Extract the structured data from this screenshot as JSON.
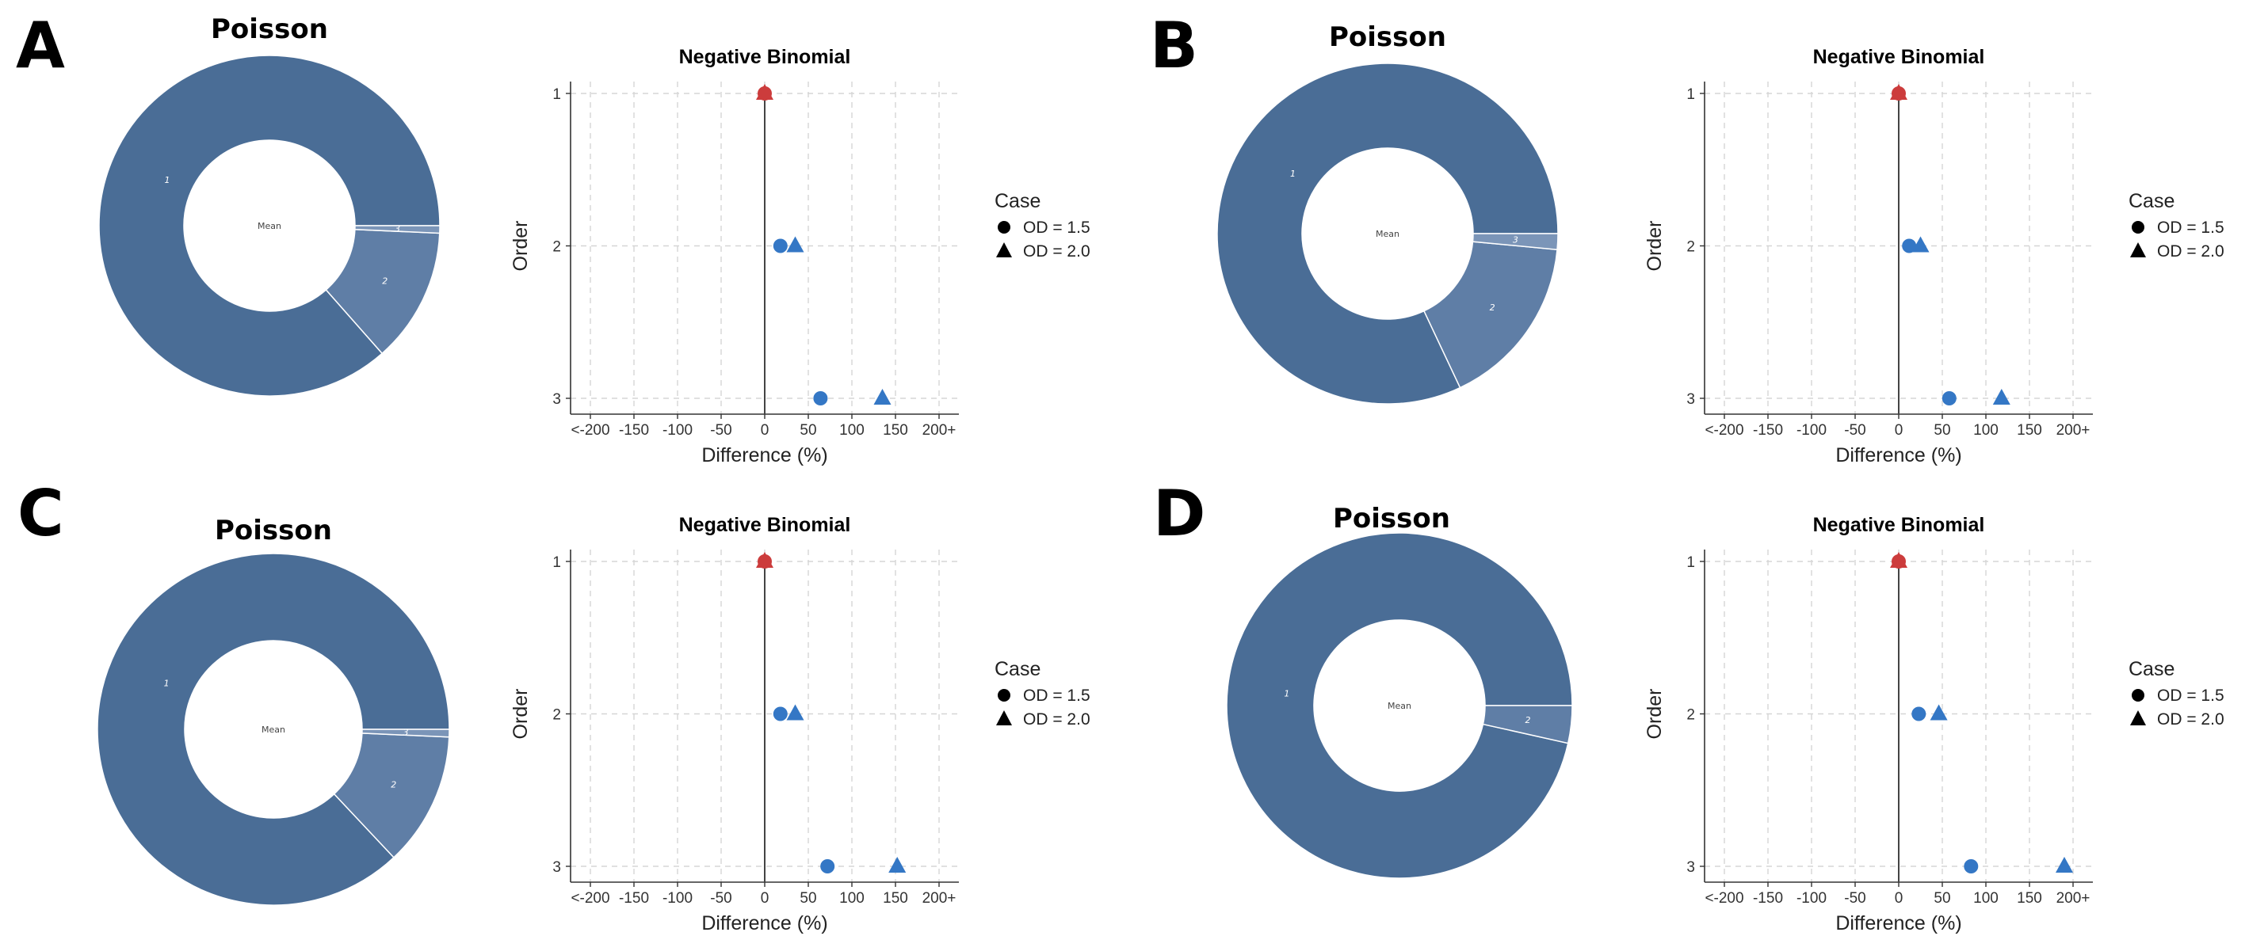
{
  "colors": {
    "donut_slice_1": "#4a6d96",
    "donut_slice_2": "#5f7ea6",
    "donut_slice_3": "#7b95b8",
    "nb_blue": "#3477c5",
    "nb_red": "#cc3c3c",
    "grid": "#d6d6d6",
    "axis": "#333333"
  },
  "legend": {
    "title": "Case",
    "items": [
      "OD = 1.5",
      "OD = 2.0"
    ]
  },
  "chart_data": [
    {
      "panel": "A",
      "poisson": {
        "type": "pie",
        "title": "Poisson",
        "center_label": "Mean",
        "slices": [
          {
            "label": "1",
            "value": 86.5
          },
          {
            "label": "2",
            "value": 12.8
          },
          {
            "label": "3",
            "value": 0.7
          }
        ]
      },
      "negbin": {
        "type": "scatter",
        "title": "Negative Binomial",
        "xlabel": "Difference (%)",
        "ylabel": "Order",
        "x_ticks": [
          "<-200",
          "-150",
          "-100",
          "-50",
          "0",
          "50",
          "100",
          "150",
          "200+"
        ],
        "y_ticks": [
          "1",
          "2",
          "3"
        ],
        "xlim": [
          -200,
          200
        ],
        "series": [
          {
            "name": "OD = 1.5",
            "shape": "circle",
            "points": [
              {
                "order": 1,
                "x": 0
              },
              {
                "order": 2,
                "x": 18
              },
              {
                "order": 3,
                "x": 64
              }
            ]
          },
          {
            "name": "OD = 2.0",
            "shape": "triangle",
            "points": [
              {
                "order": 1,
                "x": 0
              },
              {
                "order": 2,
                "x": 35
              },
              {
                "order": 3,
                "x": 135
              }
            ]
          }
        ]
      }
    },
    {
      "panel": "B",
      "poisson": {
        "type": "pie",
        "title": "Poisson",
        "center_label": "Mean",
        "slices": [
          {
            "label": "1",
            "value": 82.0
          },
          {
            "label": "2",
            "value": 16.5
          },
          {
            "label": "3",
            "value": 1.5
          }
        ]
      },
      "negbin": {
        "type": "scatter",
        "title": "Negative Binomial",
        "xlabel": "Difference (%)",
        "ylabel": "Order",
        "x_ticks": [
          "<-200",
          "-150",
          "-100",
          "-50",
          "0",
          "50",
          "100",
          "150",
          "200+"
        ],
        "y_ticks": [
          "1",
          "2",
          "3"
        ],
        "xlim": [
          -200,
          200
        ],
        "series": [
          {
            "name": "OD = 1.5",
            "shape": "circle",
            "points": [
              {
                "order": 1,
                "x": 0
              },
              {
                "order": 2,
                "x": 12
              },
              {
                "order": 3,
                "x": 58
              }
            ]
          },
          {
            "name": "OD = 2.0",
            "shape": "triangle",
            "points": [
              {
                "order": 1,
                "x": 0
              },
              {
                "order": 2,
                "x": 25
              },
              {
                "order": 3,
                "x": 118
              }
            ]
          }
        ]
      }
    },
    {
      "panel": "C",
      "poisson": {
        "type": "pie",
        "title": "Poisson",
        "center_label": "Mean",
        "slices": [
          {
            "label": "1",
            "value": 87.0
          },
          {
            "label": "2",
            "value": 12.3
          },
          {
            "label": "3",
            "value": 0.7
          }
        ]
      },
      "negbin": {
        "type": "scatter",
        "title": "Negative Binomial",
        "xlabel": "Difference (%)",
        "ylabel": "Order",
        "x_ticks": [
          "<-200",
          "-150",
          "-100",
          "-50",
          "0",
          "50",
          "100",
          "150",
          "200+"
        ],
        "y_ticks": [
          "1",
          "2",
          "3"
        ],
        "xlim": [
          -200,
          200
        ],
        "series": [
          {
            "name": "OD = 1.5",
            "shape": "circle",
            "points": [
              {
                "order": 1,
                "x": 0
              },
              {
                "order": 2,
                "x": 18
              },
              {
                "order": 3,
                "x": 72
              }
            ]
          },
          {
            "name": "OD = 2.0",
            "shape": "triangle",
            "points": [
              {
                "order": 1,
                "x": 0
              },
              {
                "order": 2,
                "x": 35
              },
              {
                "order": 3,
                "x": 152
              }
            ]
          }
        ]
      }
    },
    {
      "panel": "D",
      "poisson": {
        "type": "pie",
        "title": "Poisson",
        "center_label": "Mean",
        "slices": [
          {
            "label": "1",
            "value": 96.5
          },
          {
            "label": "2",
            "value": 3.5
          }
        ]
      },
      "negbin": {
        "type": "scatter",
        "title": "Negative Binomial",
        "xlabel": "Difference (%)",
        "ylabel": "Order",
        "x_ticks": [
          "<-200",
          "-150",
          "-100",
          "-50",
          "0",
          "50",
          "100",
          "150",
          "200+"
        ],
        "y_ticks": [
          "1",
          "2",
          "3"
        ],
        "xlim": [
          -200,
          200
        ],
        "series": [
          {
            "name": "OD = 1.5",
            "shape": "circle",
            "points": [
              {
                "order": 1,
                "x": 0
              },
              {
                "order": 2,
                "x": 23
              },
              {
                "order": 3,
                "x": 83
              }
            ]
          },
          {
            "name": "OD = 2.0",
            "shape": "triangle",
            "points": [
              {
                "order": 1,
                "x": 0
              },
              {
                "order": 2,
                "x": 46
              },
              {
                "order": 3,
                "x": 190
              }
            ]
          }
        ]
      }
    }
  ]
}
